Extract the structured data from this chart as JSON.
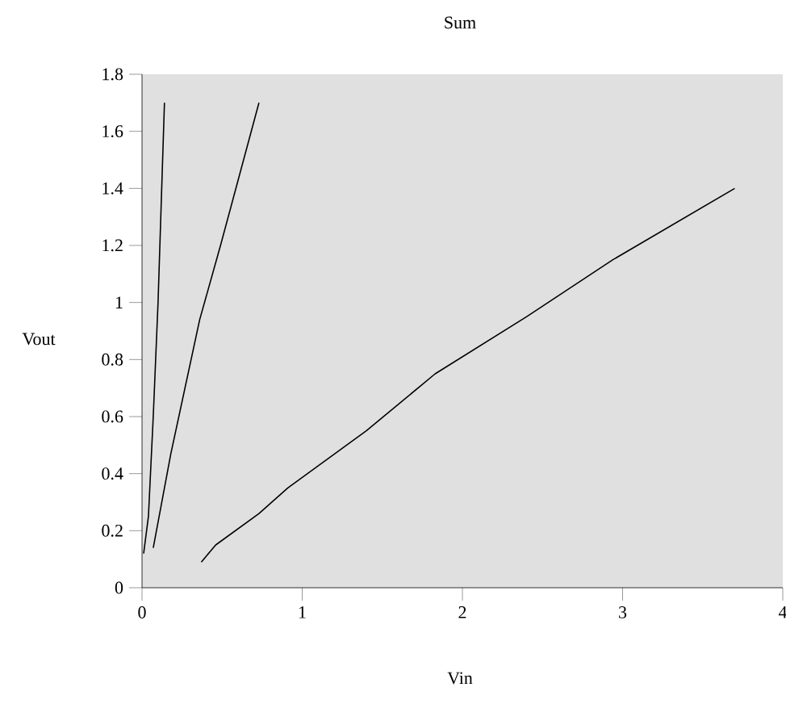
{
  "chart_data": {
    "type": "line",
    "title": "Sum",
    "xlabel": "Vin",
    "ylabel": "Vout",
    "xlim": [
      0,
      4
    ],
    "xticks": [
      0,
      1,
      2,
      3,
      4
    ],
    "ylim": [
      0,
      1.8
    ],
    "yticks": [
      0,
      0.2,
      0.4,
      0.6,
      0.8,
      1,
      1.2,
      1.4,
      1.6,
      1.8
    ],
    "marker": "none",
    "line_style": "solid",
    "series": [
      {
        "color": "#000000",
        "x": [
          0.01,
          0.04,
          0.07,
          0.1,
          0.14
        ],
        "values": [
          0.12,
          0.25,
          0.6,
          1.0,
          1.7
        ]
      },
      {
        "color": "#000000",
        "x": [
          0.07,
          0.18,
          0.36,
          0.49,
          0.73
        ],
        "values": [
          0.14,
          0.47,
          0.94,
          1.2,
          1.7
        ]
      },
      {
        "color": "#000000",
        "x": [
          0.37,
          0.46,
          0.73,
          0.91,
          1.4,
          1.83,
          2.4,
          2.94,
          3.7
        ],
        "values": [
          0.09,
          0.15,
          0.26,
          0.35,
          0.55,
          0.75,
          0.95,
          1.15,
          1.4
        ]
      }
    ]
  }
}
